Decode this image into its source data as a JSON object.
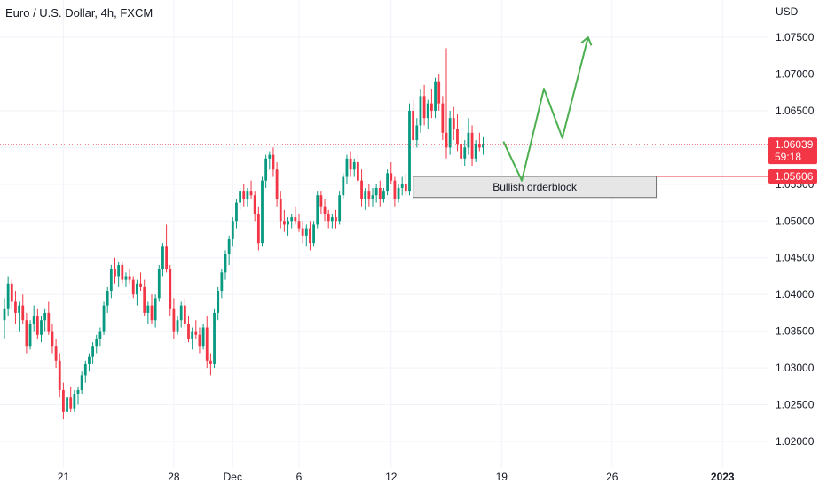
{
  "header": {
    "symbol_title": "Euro / U.S. Dollar, 4h, FXCM"
  },
  "chart_data": {
    "type": "candlestick",
    "title": "Euro / U.S. Dollar, 4h, FXCM",
    "currency_label": "USD",
    "y_ticks": [
      1.075,
      1.07,
      1.065,
      1.06,
      1.055,
      1.05,
      1.045,
      1.04,
      1.035,
      1.03,
      1.025,
      1.02
    ],
    "y_tick_labels": [
      "1.07500",
      "1.07000",
      "1.06500",
      "1.06000",
      "1.05500",
      "1.05000",
      "1.04500",
      "1.04000",
      "1.03500",
      "1.03000",
      "1.02500",
      "1.02000"
    ],
    "ylim": [
      1.0175,
      1.0785
    ],
    "x_ticks": [
      {
        "label": "21",
        "bar": 16,
        "bold": false
      },
      {
        "label": "28",
        "bar": 46,
        "bold": false
      },
      {
        "label": "Dec",
        "bar": 62,
        "bold": false
      },
      {
        "label": "6",
        "bar": 80,
        "bold": false
      },
      {
        "label": "12",
        "bar": 105,
        "bold": false
      },
      {
        "label": "19",
        "bar": 135,
        "bold": false
      },
      {
        "label": "26",
        "bar": 165,
        "bold": false
      },
      {
        "label": "2023",
        "bar": 195,
        "bold": true
      }
    ],
    "candles": [
      [
        1.0365,
        1.0395,
        1.034,
        1.038
      ],
      [
        1.038,
        1.0425,
        1.037,
        1.0415
      ],
      [
        1.0415,
        1.042,
        1.038,
        1.039
      ],
      [
        1.039,
        1.0405,
        1.036,
        1.0375
      ],
      [
        1.0375,
        1.039,
        1.035,
        1.0385
      ],
      [
        1.0385,
        1.04,
        1.036,
        1.0365
      ],
      [
        1.0365,
        1.0375,
        1.032,
        1.033
      ],
      [
        1.033,
        1.0365,
        1.0325,
        1.036
      ],
      [
        1.036,
        1.0385,
        1.035,
        1.037
      ],
      [
        1.037,
        1.038,
        1.034,
        1.0345
      ],
      [
        1.0345,
        1.037,
        1.0335,
        1.0365
      ],
      [
        1.0365,
        1.038,
        1.035,
        1.0375
      ],
      [
        1.0375,
        1.039,
        1.0345,
        1.035
      ],
      [
        1.035,
        1.036,
        1.032,
        1.033
      ],
      [
        1.033,
        1.034,
        1.03,
        1.031
      ],
      [
        1.031,
        1.032,
        1.026,
        1.027
      ],
      [
        1.027,
        1.028,
        1.023,
        1.024
      ],
      [
        1.024,
        1.0265,
        1.023,
        1.026
      ],
      [
        1.026,
        1.0275,
        1.024,
        1.0245
      ],
      [
        1.0245,
        1.027,
        1.024,
        1.0265
      ],
      [
        1.0265,
        1.0275,
        1.025,
        1.027
      ],
      [
        1.027,
        1.0295,
        1.0265,
        1.029
      ],
      [
        1.029,
        1.031,
        1.028,
        1.0305
      ],
      [
        1.0305,
        1.032,
        1.0295,
        1.0315
      ],
      [
        1.0315,
        1.0335,
        1.0305,
        1.033
      ],
      [
        1.033,
        1.0345,
        1.032,
        1.034
      ],
      [
        1.034,
        1.0355,
        1.033,
        1.035
      ],
      [
        1.035,
        1.039,
        1.0345,
        1.0385
      ],
      [
        1.0385,
        1.041,
        1.0375,
        1.0405
      ],
      [
        1.0405,
        1.044,
        1.0395,
        1.0435
      ],
      [
        1.0435,
        1.045,
        1.0415,
        1.0425
      ],
      [
        1.0425,
        1.0445,
        1.041,
        1.044
      ],
      [
        1.044,
        1.0445,
        1.0415,
        1.042
      ],
      [
        1.042,
        1.043,
        1.041,
        1.0425
      ],
      [
        1.0425,
        1.0435,
        1.0415,
        1.042
      ],
      [
        1.042,
        1.0425,
        1.0395,
        1.04
      ],
      [
        1.04,
        1.042,
        1.0385,
        1.0415
      ],
      [
        1.0415,
        1.043,
        1.0405,
        1.041
      ],
      [
        1.041,
        1.042,
        1.037,
        1.0375
      ],
      [
        1.0375,
        1.039,
        1.036,
        1.0385
      ],
      [
        1.0385,
        1.04,
        1.036,
        1.0365
      ],
      [
        1.0365,
        1.04,
        1.0355,
        1.0395
      ],
      [
        1.0395,
        1.044,
        1.039,
        1.0435
      ],
      [
        1.0435,
        1.047,
        1.0425,
        1.0465
      ],
      [
        1.0465,
        1.0495,
        1.043,
        1.0435
      ],
      [
        1.0435,
        1.044,
        1.037,
        1.038
      ],
      [
        1.038,
        1.0395,
        1.034,
        1.035
      ],
      [
        1.035,
        1.037,
        1.0345,
        1.0365
      ],
      [
        1.0365,
        1.039,
        1.0355,
        1.0385
      ],
      [
        1.0385,
        1.0395,
        1.0355,
        1.036
      ],
      [
        1.036,
        1.037,
        1.0335,
        1.034
      ],
      [
        1.034,
        1.0355,
        1.0325,
        1.035
      ],
      [
        1.035,
        1.0365,
        1.034,
        1.0345
      ],
      [
        1.0345,
        1.0355,
        1.032,
        1.033
      ],
      [
        1.033,
        1.036,
        1.0325,
        1.0355
      ],
      [
        1.0355,
        1.037,
        1.03,
        1.031
      ],
      [
        1.031,
        1.032,
        1.029,
        1.0305
      ],
      [
        1.0305,
        1.038,
        1.03,
        1.0375
      ],
      [
        1.0375,
        1.041,
        1.0365,
        1.0405
      ],
      [
        1.0405,
        1.0435,
        1.0395,
        1.043
      ],
      [
        1.043,
        1.046,
        1.042,
        1.0455
      ],
      [
        1.0455,
        1.048,
        1.044,
        1.0475
      ],
      [
        1.0475,
        1.0505,
        1.0465,
        1.05
      ],
      [
        1.05,
        1.053,
        1.049,
        1.0525
      ],
      [
        1.0525,
        1.0545,
        1.0515,
        1.054
      ],
      [
        1.054,
        1.055,
        1.052,
        1.053
      ],
      [
        1.053,
        1.0545,
        1.052,
        1.054
      ],
      [
        1.054,
        1.0555,
        1.053,
        1.0535
      ],
      [
        1.0535,
        1.054,
        1.05,
        1.051
      ],
      [
        1.051,
        1.052,
        1.046,
        1.047
      ],
      [
        1.047,
        1.056,
        1.0465,
        1.0555
      ],
      [
        1.0555,
        1.059,
        1.0545,
        1.0585
      ],
      [
        1.0585,
        1.0595,
        1.057,
        1.059
      ],
      [
        1.059,
        1.06,
        1.056,
        1.057
      ],
      [
        1.057,
        1.058,
        1.052,
        1.053
      ],
      [
        1.053,
        1.054,
        1.049,
        1.05
      ],
      [
        1.05,
        1.0515,
        1.0485,
        1.0495
      ],
      [
        1.0495,
        1.0505,
        1.048,
        1.05
      ],
      [
        1.05,
        1.051,
        1.049,
        1.0505
      ],
      [
        1.0505,
        1.052,
        1.0495,
        1.05
      ],
      [
        1.05,
        1.051,
        1.0485,
        1.049
      ],
      [
        1.049,
        1.05,
        1.047,
        1.048
      ],
      [
        1.048,
        1.0495,
        1.0465,
        1.049
      ],
      [
        1.049,
        1.05,
        1.046,
        1.047
      ],
      [
        1.047,
        1.05,
        1.0465,
        1.0495
      ],
      [
        1.0495,
        1.054,
        1.049,
        1.0535
      ],
      [
        1.0535,
        1.054,
        1.051,
        1.052
      ],
      [
        1.052,
        1.053,
        1.05,
        1.051
      ],
      [
        1.051,
        1.0515,
        1.049,
        1.05
      ],
      [
        1.05,
        1.051,
        1.049,
        1.0505
      ],
      [
        1.0505,
        1.0515,
        1.049,
        1.05
      ],
      [
        1.05,
        1.054,
        1.0495,
        1.0535
      ],
      [
        1.0535,
        1.0565,
        1.053,
        1.056
      ],
      [
        1.056,
        1.059,
        1.055,
        1.0585
      ],
      [
        1.0585,
        1.0595,
        1.056,
        1.057
      ],
      [
        1.057,
        1.0585,
        1.056,
        1.058
      ],
      [
        1.058,
        1.059,
        1.055,
        1.0555
      ],
      [
        1.0555,
        1.057,
        1.052,
        1.053
      ],
      [
        1.053,
        1.0545,
        1.0515,
        1.054
      ],
      [
        1.054,
        1.055,
        1.052,
        1.053
      ],
      [
        1.053,
        1.0545,
        1.052,
        1.0535
      ],
      [
        1.0535,
        1.055,
        1.0525,
        1.0545
      ],
      [
        1.0545,
        1.0555,
        1.052,
        1.053
      ],
      [
        1.053,
        1.0545,
        1.0525,
        1.054
      ],
      [
        1.054,
        1.057,
        1.0535,
        1.0565
      ],
      [
        1.0565,
        1.058,
        1.055,
        1.0555
      ],
      [
        1.0555,
        1.056,
        1.052,
        1.053
      ],
      [
        1.053,
        1.055,
        1.0525,
        1.0545
      ],
      [
        1.0545,
        1.056,
        1.0535,
        1.055
      ],
      [
        1.055,
        1.0565,
        1.0535,
        1.054
      ],
      [
        1.054,
        1.066,
        1.0535,
        1.065
      ],
      [
        1.065,
        1.0665,
        1.06,
        1.061
      ],
      [
        1.061,
        1.064,
        1.06,
        1.063
      ],
      [
        1.063,
        1.068,
        1.062,
        1.067
      ],
      [
        1.067,
        1.0685,
        1.063,
        1.064
      ],
      [
        1.064,
        1.0665,
        1.0625,
        1.066
      ],
      [
        1.066,
        1.068,
        1.064,
        1.065
      ],
      [
        1.065,
        1.0695,
        1.064,
        1.069
      ],
      [
        1.069,
        1.07,
        1.065,
        1.066
      ],
      [
        1.066,
        1.067,
        1.061,
        1.062
      ],
      [
        1.062,
        1.0735,
        1.0585,
        1.06
      ],
      [
        1.06,
        1.065,
        1.059,
        1.064
      ],
      [
        1.064,
        1.0655,
        1.061,
        1.0625
      ],
      [
        1.0625,
        1.0645,
        1.0595,
        1.0605
      ],
      [
        1.0605,
        1.0615,
        1.0575,
        1.0585
      ],
      [
        1.0585,
        1.061,
        1.0575,
        1.06
      ],
      [
        1.06,
        1.064,
        1.059,
        1.062
      ],
      [
        1.062,
        1.063,
        1.0575,
        1.0585
      ],
      [
        1.0585,
        1.061,
        1.058,
        1.0605
      ],
      [
        1.0605,
        1.062,
        1.0595,
        1.06
      ],
      [
        1.06,
        1.0615,
        1.059,
        1.0604
      ]
    ],
    "candle_colors": {
      "up": "#089981",
      "down": "#f23645"
    },
    "current_price": {
      "label": "1.06039",
      "countdown": "59:18",
      "value": 1.06039,
      "color": "#f23645"
    },
    "level_price": {
      "label": "1.05606",
      "value": 1.05606,
      "color": "#f23645"
    },
    "orderblock": {
      "label": "Bullish orderblock",
      "top": 1.05606,
      "bottom": 1.0532,
      "start_bar": 111,
      "end_bar": 177,
      "fill": "#e6e6e6",
      "border": "#707070"
    },
    "projection": {
      "color": "#4caf50",
      "points": [
        [
          135.5,
          1.0608
        ],
        [
          140.5,
          1.0555
        ],
        [
          146.5,
          1.068
        ],
        [
          151.5,
          1.0613
        ],
        [
          158.5,
          1.075
        ]
      ]
    },
    "grid": true
  }
}
